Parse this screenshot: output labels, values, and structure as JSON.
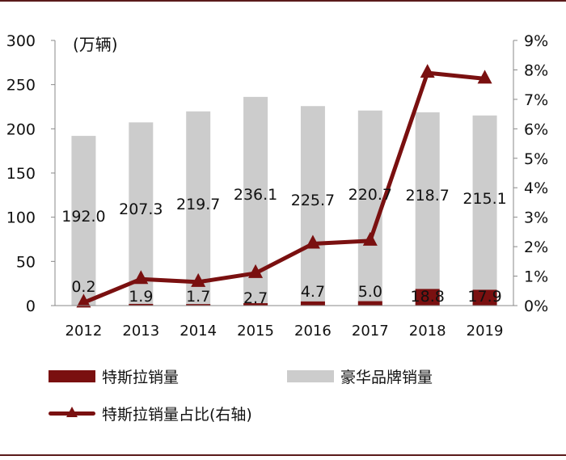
{
  "chart_data": {
    "type": "bar+line",
    "title": "",
    "unit_label": "(万辆)",
    "categories": [
      "2012",
      "2013",
      "2014",
      "2015",
      "2016",
      "2017",
      "2018",
      "2019"
    ],
    "series": [
      {
        "name": "特斯拉销量",
        "type": "bar",
        "axis": "left",
        "color": "#7a1010",
        "values": [
          0.2,
          1.9,
          1.7,
          2.7,
          4.7,
          5.0,
          18.8,
          17.9
        ]
      },
      {
        "name": "豪华品牌销量",
        "type": "bar",
        "axis": "left",
        "color": "#cccccc",
        "values": [
          192.0,
          207.3,
          219.7,
          236.1,
          225.7,
          220.7,
          218.7,
          215.1
        ]
      },
      {
        "name": "特斯拉销量占比(右轴)",
        "type": "line",
        "axis": "right",
        "color": "#7a1010",
        "values": [
          0.1,
          0.9,
          0.8,
          1.1,
          2.1,
          2.2,
          7.9,
          7.7
        ]
      }
    ],
    "tesla_labels": [
      "0.2",
      "1.9",
      "1.7",
      "2.7",
      "4.7",
      "5.0",
      "18.8",
      "17.9"
    ],
    "luxury_labels": [
      "192.0",
      "207.3",
      "219.7",
      "236.1",
      "225.7",
      "220.7",
      "218.7",
      "215.1"
    ],
    "y_left": {
      "min": 0,
      "max": 300,
      "ticks": [
        "0",
        "50",
        "100",
        "150",
        "200",
        "250",
        "300"
      ]
    },
    "y_right": {
      "min": 0,
      "max": 9,
      "ticks": [
        "0%",
        "1%",
        "2%",
        "3%",
        "4%",
        "5%",
        "6%",
        "7%",
        "8%",
        "9%"
      ]
    },
    "grid": false,
    "legend_position": "bottom"
  }
}
